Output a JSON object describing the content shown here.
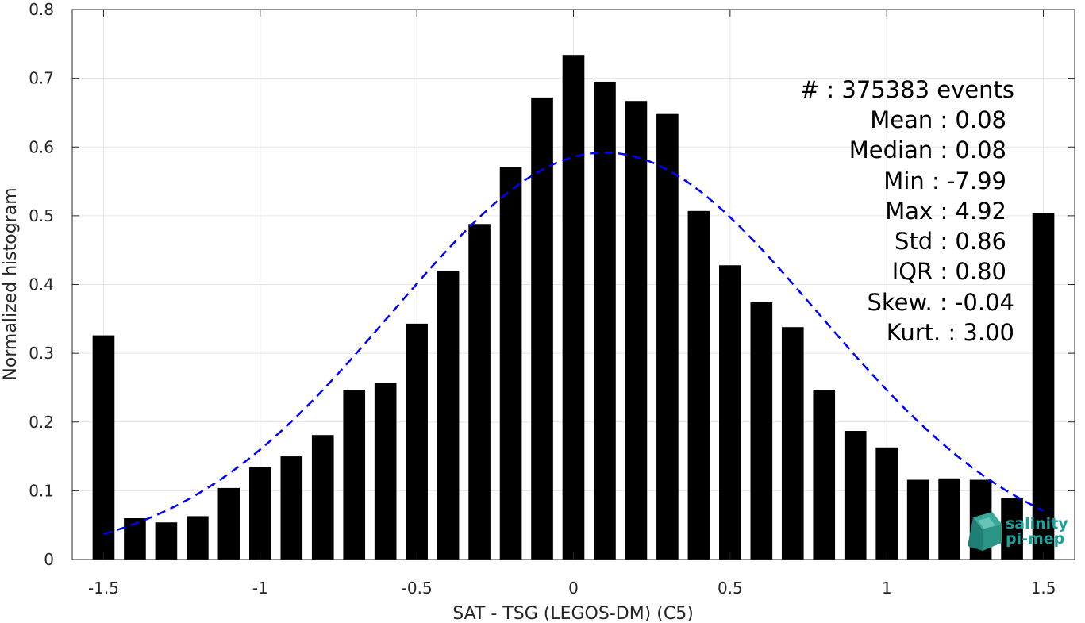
{
  "chart_data": {
    "type": "bar",
    "xlabel": "SAT - TSG (LEGOS-DM) (C5)",
    "ylabel": "Normalized histogram",
    "xlim": [
      -1.6,
      1.6
    ],
    "ylim": [
      0,
      0.8
    ],
    "xticks": [
      "-1.5",
      "-1",
      "-0.5",
      "0",
      "0.5",
      "1",
      "1.5"
    ],
    "xtick_values": [
      -1.5,
      -1,
      -0.5,
      0,
      0.5,
      1,
      1.5
    ],
    "yticks": [
      "0",
      "0.1",
      "0.2",
      "0.3",
      "0.4",
      "0.5",
      "0.6",
      "0.7",
      "0.8"
    ],
    "ytick_values": [
      0,
      0.1,
      0.2,
      0.3,
      0.4,
      0.5,
      0.6,
      0.7,
      0.8
    ],
    "grid": true,
    "bar_color": "#000000",
    "bars": {
      "x": [
        -1.5,
        -1.4,
        -1.3,
        -1.2,
        -1.1,
        -1.0,
        -0.9,
        -0.8,
        -0.7,
        -0.6,
        -0.5,
        -0.4,
        -0.3,
        -0.2,
        -0.1,
        0.0,
        0.1,
        0.2,
        0.3,
        0.4,
        0.5,
        0.6,
        0.7,
        0.8,
        0.9,
        1.0,
        1.1,
        1.2,
        1.3,
        1.4,
        1.5
      ],
      "values": [
        0.326,
        0.06,
        0.054,
        0.063,
        0.104,
        0.134,
        0.15,
        0.181,
        0.247,
        0.257,
        0.343,
        0.42,
        0.488,
        0.571,
        0.672,
        0.734,
        0.695,
        0.667,
        0.648,
        0.507,
        0.428,
        0.374,
        0.338,
        0.247,
        0.187,
        0.163,
        0.116,
        0.118,
        0.116,
        0.089,
        0.504
      ]
    },
    "fit": {
      "type": "gaussian",
      "line_style": "dashed",
      "color": "#0000ff",
      "mean": 0.1,
      "std": 0.68,
      "peak": 0.592,
      "x_range": [
        -1.5,
        1.5
      ]
    },
    "annotations": [
      "#  : 375383 events",
      "Mean : 0.08",
      "Median : 0.08",
      "Min : -7.99",
      "Max : 4.92",
      "Std : 0.86",
      "IQR : 0.80",
      "Skew. : -0.04",
      "Kurt. : 3.00"
    ]
  },
  "logo": {
    "line1": "salinity",
    "line2": "pi-mep",
    "color": "#1aa39a"
  }
}
